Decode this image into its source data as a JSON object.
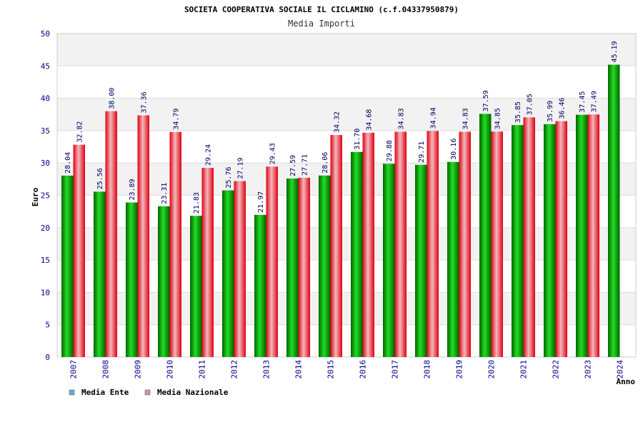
{
  "chart_data": {
    "type": "bar",
    "title": "SOCIETA COOPERATIVA SOCIALE IL CICLAMINO (c.f.04337950879)",
    "subtitle": "Media Importi",
    "xlabel": "Anno",
    "ylabel": "Euro",
    "ylim": [
      0,
      50
    ],
    "yticks": [
      "0",
      "5",
      "10",
      "15",
      "20",
      "25",
      "30",
      "35",
      "40",
      "45",
      "50"
    ],
    "categories": [
      "2007",
      "2008",
      "2009",
      "2010",
      "2011",
      "2012",
      "2013",
      "2014",
      "2015",
      "2016",
      "2017",
      "2018",
      "2019",
      "2020",
      "2021",
      "2022",
      "2023",
      "2024"
    ],
    "series": [
      {
        "name": "Media Ente",
        "values": [
          28.04,
          25.56,
          23.89,
          23.31,
          21.83,
          25.76,
          21.97,
          27.59,
          28.06,
          31.7,
          29.88,
          29.71,
          30.16,
          37.59,
          35.85,
          35.99,
          37.45,
          45.19
        ],
        "labels": [
          "28.04",
          "25.56",
          "23.89",
          "23.31",
          "21.83",
          "25.76",
          "21.97",
          "27.59",
          "28.06",
          "31.70",
          "29.88",
          "29.71",
          "30.16",
          "37.59",
          "35.85",
          "35.99",
          "37.45",
          "45.19"
        ]
      },
      {
        "name": "Media Nazionale",
        "values": [
          32.82,
          38.0,
          37.36,
          34.79,
          29.24,
          27.19,
          29.43,
          27.71,
          34.32,
          34.68,
          34.83,
          34.94,
          34.83,
          34.85,
          37.05,
          36.46,
          37.49,
          null
        ],
        "labels": [
          "32.82",
          "38.00",
          "37.36",
          "34.79",
          "29.24",
          "27.19",
          "29.43",
          "27.71",
          "34.32",
          "34.68",
          "34.83",
          "34.94",
          "34.83",
          "34.85",
          "37.05",
          "36.46",
          "37.49",
          null
        ]
      }
    ],
    "legend": [
      {
        "name": "Media Ente",
        "color": "#6fa8dc"
      },
      {
        "name": "Media Nazionale",
        "color": "#d98cb3"
      }
    ],
    "colors": {
      "ente_dark": "#006400",
      "ente_light": "#22dd22",
      "naz_dark": "#e00010",
      "naz_light": "#f2b8be",
      "band": "#f2f2f2",
      "grid": "#dddddd"
    }
  }
}
